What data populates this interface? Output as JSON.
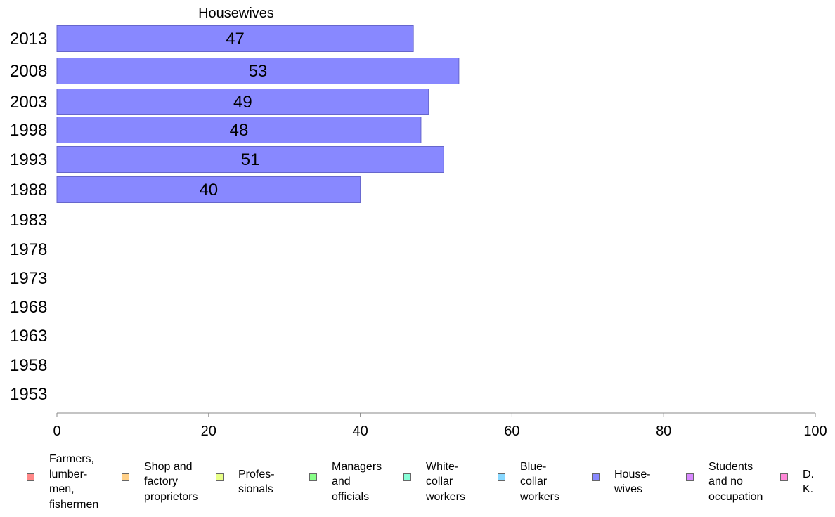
{
  "chart_data": {
    "type": "bar",
    "orientation": "horizontal",
    "title": "Housewives",
    "categories": [
      "2013",
      "2008",
      "2003",
      "1998",
      "1993",
      "1988",
      "1983",
      "1978",
      "1973",
      "1968",
      "1963",
      "1958",
      "1953"
    ],
    "series": [
      {
        "name": "Housewives",
        "values": [
          47,
          53,
          49,
          48,
          51,
          40,
          null,
          null,
          null,
          null,
          null,
          null,
          null
        ]
      }
    ],
    "data_labels": [
      "47",
      "53",
      "49",
      "48",
      "51",
      "40",
      "",
      "",
      "",
      "",
      "",
      "",
      ""
    ],
    "xlim": [
      0,
      100
    ],
    "xticks": [
      "0",
      "20",
      "40",
      "60",
      "80",
      "100"
    ],
    "grid": false,
    "bar_color": "#8888ff",
    "legend_position": "bottom",
    "legend": [
      {
        "label": "Farmers,\nlumber-\nmen,\nfishermen",
        "color": "#ff8888"
      },
      {
        "label": "Shop and\nfactory\nproprietors",
        "color": "#ffd088"
      },
      {
        "label": "Profes-\nsionals",
        "color": "#e8ff88"
      },
      {
        "label": "Managers\nand\nofficials",
        "color": "#88ff88"
      },
      {
        "label": "White-\ncollar\nworkers",
        "color": "#88ffd8"
      },
      {
        "label": "Blue-collar\nworkers",
        "color": "#88d8ff"
      },
      {
        "label": "House-\nwives",
        "color": "#8888ff"
      },
      {
        "label": "Students\nand no\noccupation",
        "color": "#d888ff"
      },
      {
        "label": "D. K.",
        "color": "#ff88d8"
      }
    ]
  }
}
